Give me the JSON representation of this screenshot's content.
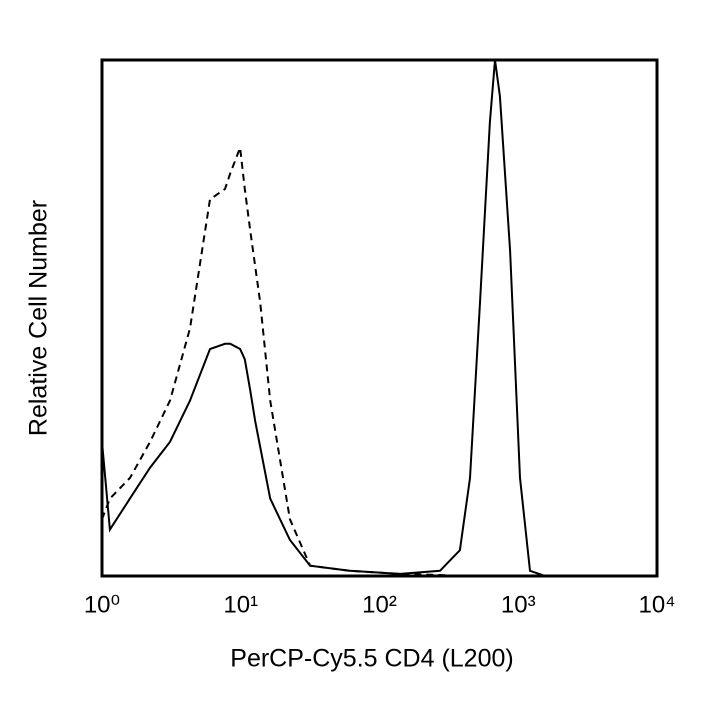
{
  "chart_data": {
    "type": "line",
    "x_label": "PerCP-Cy5.5 CD4 (L200)",
    "y_label": "Relative Cell Number",
    "xscale": "log",
    "xlim": [
      1,
      10000
    ],
    "xticks": [
      {
        "value": 1,
        "label": "10⁰"
      },
      {
        "value": 10,
        "label": "10¹"
      },
      {
        "value": 100,
        "label": "10²"
      },
      {
        "value": 1000,
        "label": "10³"
      },
      {
        "value": 10000,
        "label": "10⁴"
      }
    ],
    "ylim": [
      0,
      100
    ],
    "x": [
      1,
      1.14,
      1.59,
      2.22,
      3.09,
      4.31,
      6,
      7.7,
      8.4,
      9.9,
      10.7,
      11.7,
      12.7,
      13.8,
      16.3,
      22.6,
      31.6,
      61,
      141,
      273,
      380,
      449,
      530,
      625,
      680,
      738,
      873,
      1030,
      1216,
      1560,
      10000
    ],
    "series": [
      {
        "color": "#000000",
        "dash": "solid",
        "values": [
          26,
          9,
          15,
          21,
          26,
          34,
          44,
          45,
          45,
          44,
          42,
          36,
          30,
          25,
          15,
          7,
          2,
          1,
          0.4,
          1,
          5,
          19,
          53,
          88,
          100,
          93,
          63,
          19,
          1,
          0,
          0
        ]
      },
      {
        "color": "#000000",
        "dash": "dashed",
        "values": [
          11,
          15,
          19,
          26,
          34,
          48,
          73,
          75,
          78,
          83,
          75,
          67,
          60,
          53,
          34,
          11,
          2,
          1,
          0.4,
          0.2,
          0,
          0,
          0,
          0,
          0,
          0,
          0,
          0,
          0,
          0,
          0
        ]
      }
    ]
  }
}
